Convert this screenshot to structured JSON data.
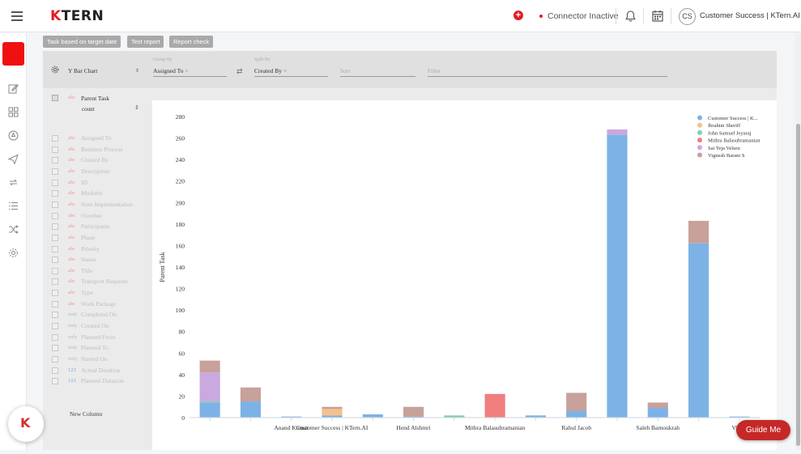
{
  "header": {
    "brand_k": "K",
    "brand_rest": "TERN",
    "connector_status": "Connector Inactive",
    "avatar_initials": "CS",
    "user_name": "Customer Success | KTern.AI"
  },
  "toolbar": {
    "buttons": [
      "Task based on target date",
      "Test report",
      "Report check"
    ]
  },
  "chart_settings": {
    "chart_type": "Y Bar Chart",
    "group_by_label": "Group By",
    "group_by_value": "Assigned To",
    "split_by_label": "Split By",
    "split_by_value": "Created By",
    "sort_placeholder": "Sort",
    "filter_placeholder": "Filter"
  },
  "columns": {
    "selected": {
      "type": "abc",
      "name": "Parent Task",
      "aggregation": "count"
    },
    "fields": [
      {
        "type": "abc",
        "name": "Assigned To"
      },
      {
        "type": "abc",
        "name": "Business Process"
      },
      {
        "type": "abc",
        "name": "Created By"
      },
      {
        "type": "abc",
        "name": "Description"
      },
      {
        "type": "abc",
        "name": "ID"
      },
      {
        "type": "abc",
        "name": "Modules"
      },
      {
        "type": "abc",
        "name": "Note Implementation"
      },
      {
        "type": "abc",
        "name": "Overdue"
      },
      {
        "type": "abc",
        "name": "Participants"
      },
      {
        "type": "abc",
        "name": "Phase"
      },
      {
        "type": "abc",
        "name": "Priority"
      },
      {
        "type": "abc",
        "name": "Status"
      },
      {
        "type": "abc",
        "name": "Title"
      },
      {
        "type": "abc",
        "name": "Transport Requests"
      },
      {
        "type": "abc",
        "name": "Type"
      },
      {
        "type": "abc",
        "name": "Work Package"
      },
      {
        "type": "mdy",
        "name": "Completed On"
      },
      {
        "type": "mdy",
        "name": "Created On"
      },
      {
        "type": "mdy",
        "name": "Planned From"
      },
      {
        "type": "mdy",
        "name": "Planned To"
      },
      {
        "type": "mdy",
        "name": "Started On"
      },
      {
        "type": "123",
        "name": "Actual Duration"
      },
      {
        "type": "123",
        "name": "Planned Duration"
      }
    ],
    "new_column_label": "New Column"
  },
  "guide_button": "Guide Me",
  "chart_data": {
    "type": "bar",
    "stacked": true,
    "ylabel": "Parent Task",
    "ylim": [
      0,
      280
    ],
    "yticks": [
      0,
      20,
      40,
      60,
      80,
      100,
      120,
      140,
      160,
      180,
      200,
      220,
      240,
      260,
      280
    ],
    "categories": [
      "",
      "",
      "Anand Kumar",
      "Customer Success | KTern.AI",
      "",
      "Hend Alshmri",
      "",
      "Mithra Balasubramanian",
      "",
      "Rahul Jacob",
      "",
      "Saleh Bamoukrah",
      "",
      "Vinith"
    ],
    "legend_position": "top-right",
    "series": [
      {
        "name": "Customer Success | K...",
        "color": "#7cb2e6",
        "values": [
          14,
          15,
          1,
          2,
          3,
          1,
          0,
          0,
          2,
          6,
          263,
          9,
          162,
          1
        ]
      },
      {
        "name": "Ibrahim Sheriff",
        "color": "#f6c08a",
        "values": [
          0,
          0,
          0,
          6,
          0,
          0,
          0,
          0,
          0,
          0,
          0,
          0,
          0,
          0
        ]
      },
      {
        "name": "John Samuel Jeyaraj",
        "color": "#7fd0a8",
        "values": [
          1,
          0,
          0,
          0,
          0,
          0,
          2,
          0,
          0,
          0,
          0,
          0,
          0,
          0
        ]
      },
      {
        "name": "Mithra Balasubramanian",
        "color": "#ef7f7f",
        "values": [
          0,
          0,
          0,
          0,
          0,
          0,
          0,
          22,
          0,
          0,
          0,
          0,
          0,
          0
        ]
      },
      {
        "name": "Sai Teja Veluru",
        "color": "#c9a9de",
        "values": [
          27,
          0,
          0,
          0,
          0,
          0,
          0,
          0,
          0,
          0,
          5,
          0,
          0,
          0
        ]
      },
      {
        "name": "Vignesh Barani S",
        "color": "#c7a19a",
        "values": [
          11,
          13,
          0,
          2,
          0,
          9,
          0,
          0,
          0,
          17,
          0,
          5,
          21,
          0
        ]
      }
    ]
  }
}
